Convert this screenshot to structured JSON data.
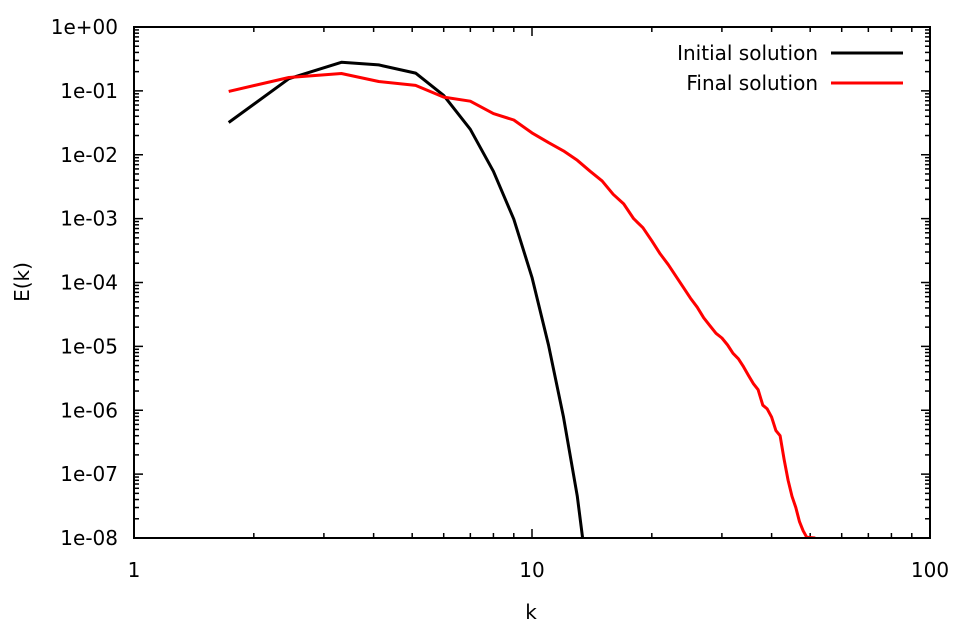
{
  "chart_data": {
    "type": "line",
    "title": "",
    "xlabel": "k",
    "ylabel": "E(k)",
    "x_scale": "log",
    "y_scale": "log",
    "xlim": [
      1,
      100
    ],
    "ylim": [
      1e-08,
      1
    ],
    "grid": false,
    "legend_position": "top-right",
    "x_ticks": [
      {
        "value": 1,
        "label": "1"
      },
      {
        "value": 10,
        "label": "10"
      },
      {
        "value": 100,
        "label": "100"
      }
    ],
    "y_ticks": [
      {
        "value": 1,
        "label": "1e+00"
      },
      {
        "value": 0.1,
        "label": "1e-01"
      },
      {
        "value": 0.01,
        "label": "1e-02"
      },
      {
        "value": 0.001,
        "label": "1e-03"
      },
      {
        "value": 0.0001,
        "label": "1e-04"
      },
      {
        "value": 1e-05,
        "label": "1e-05"
      },
      {
        "value": 1e-06,
        "label": "1e-06"
      },
      {
        "value": 1e-07,
        "label": "1e-07"
      },
      {
        "value": 1e-08,
        "label": "1e-08"
      }
    ],
    "series": [
      {
        "name": "Initial solution",
        "color": "#000000",
        "points": [
          [
            1.73,
            0.032
          ],
          [
            2.45,
            0.155
          ],
          [
            3.32,
            0.28
          ],
          [
            4.12,
            0.255
          ],
          [
            5.1,
            0.19
          ],
          [
            6.0,
            0.085
          ],
          [
            7.0,
            0.025
          ],
          [
            8.0,
            0.0055
          ],
          [
            9.0,
            0.00098
          ],
          [
            10.0,
            0.00012
          ],
          [
            11.0,
            1.05e-05
          ],
          [
            12.0,
            7.8e-07
          ],
          [
            13.0,
            4.5e-08
          ],
          [
            13.4,
            1e-08
          ]
        ]
      },
      {
        "name": "Final solution",
        "color": "#ff0000",
        "points": [
          [
            1.73,
            0.098
          ],
          [
            2.45,
            0.162
          ],
          [
            3.32,
            0.187
          ],
          [
            4.12,
            0.14
          ],
          [
            5.1,
            0.122
          ],
          [
            6.0,
            0.08
          ],
          [
            7.0,
            0.069
          ],
          [
            8.0,
            0.044
          ],
          [
            9.0,
            0.035
          ],
          [
            10.0,
            0.022
          ],
          [
            11.0,
            0.0155
          ],
          [
            12.0,
            0.0115
          ],
          [
            13.0,
            0.0082
          ],
          [
            14.0,
            0.0055
          ],
          [
            15.0,
            0.0039
          ],
          [
            16.0,
            0.0024
          ],
          [
            17.0,
            0.0017
          ],
          [
            18.0,
            0.001
          ],
          [
            19.0,
            0.00072
          ],
          [
            20.0,
            0.00045
          ],
          [
            21.0,
            0.00028
          ],
          [
            22.0,
            0.00019
          ],
          [
            23.0,
            0.000125
          ],
          [
            24.0,
            8.4e-05
          ],
          [
            25.0,
            5.7e-05
          ],
          [
            26.0,
            4.1e-05
          ],
          [
            27.0,
            2.8e-05
          ],
          [
            28.0,
            2.1e-05
          ],
          [
            29.0,
            1.6e-05
          ],
          [
            30.0,
            1.35e-05
          ],
          [
            31.0,
            1.05e-05
          ],
          [
            32.0,
            7.8e-06
          ],
          [
            33.0,
            6.4e-06
          ],
          [
            34.0,
            4.8e-06
          ],
          [
            35.0,
            3.5e-06
          ],
          [
            36.0,
            2.6e-06
          ],
          [
            37.0,
            2.1e-06
          ],
          [
            38.0,
            1.2e-06
          ],
          [
            39.0,
            1.05e-06
          ],
          [
            40.0,
            7.8e-07
          ],
          [
            41.0,
            4.8e-07
          ],
          [
            42.0,
            4e-07
          ],
          [
            43.0,
            1.7e-07
          ],
          [
            44.0,
            8e-08
          ],
          [
            45.0,
            4.5e-08
          ],
          [
            46.0,
            3e-08
          ],
          [
            47.0,
            1.8e-08
          ],
          [
            48.0,
            1.3e-08
          ],
          [
            49.0,
            1.03e-08
          ],
          [
            51.5,
            1e-08
          ]
        ]
      }
    ]
  }
}
